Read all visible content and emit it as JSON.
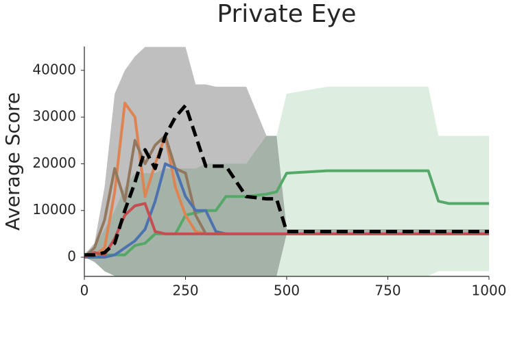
{
  "chart_data": {
    "type": "line",
    "title": "Private Eye",
    "ylabel": "Average Score",
    "x": [
      0,
      25,
      50,
      75,
      100,
      125,
      150,
      175,
      200,
      225,
      250,
      275,
      300,
      325,
      350,
      400,
      450,
      475,
      500,
      600,
      700,
      800,
      850,
      875,
      900,
      1000
    ],
    "xlim": [
      0,
      1000
    ],
    "xticks": [
      0,
      250,
      500,
      750,
      1000
    ],
    "ylim": [
      -4100,
      45100
    ],
    "yticks": [
      0,
      10000,
      20000,
      30000,
      40000
    ],
    "series": [
      {
        "color": "#55a868",
        "band_opacity": 0.2,
        "values": [
          500,
          500,
          500,
          500,
          500,
          2500,
          3000,
          5000,
          5000,
          5000,
          9000,
          9500,
          10000,
          10000,
          13000,
          13000,
          13500,
          14000,
          18000,
          18500,
          18500,
          18500,
          18500,
          12000,
          11500,
          11500
        ],
        "upper": [
          1000,
          2000,
          6000,
          10000,
          15000,
          18000,
          18000,
          18000,
          19000,
          19000,
          19000,
          19000,
          20000,
          20000,
          20000,
          20000,
          26000,
          26000,
          35000,
          36500,
          36500,
          36500,
          36500,
          26000,
          26000,
          26000
        ],
        "lower": [
          0,
          -1000,
          -3000,
          -4000,
          -4000,
          -4000,
          -4000,
          -4000,
          -4000,
          -4000,
          -4000,
          -4000,
          -4000,
          -4000,
          -4000,
          -4000,
          -4000,
          -4000,
          -4000,
          -4000,
          -4000,
          -4000,
          -4000,
          -3000,
          -3000,
          -3000
        ]
      },
      {
        "color": "#dd8452",
        "values": [
          0,
          500,
          2000,
          14000,
          33000,
          30000,
          13000,
          20000,
          26000,
          15000,
          9000,
          5500,
          5000,
          5000,
          5000,
          5000,
          5000,
          5000,
          5000,
          5000,
          5000,
          5000,
          5000,
          5000,
          5000,
          5000
        ]
      },
      {
        "color": "#937860",
        "values": [
          0,
          2000,
          8000,
          19000,
          12000,
          25000,
          20000,
          24000,
          26000,
          19000,
          18000,
          9000,
          5000,
          5000,
          5000,
          5000,
          5000,
          5000,
          5000,
          5000,
          5000,
          5000,
          5000,
          5000,
          5000,
          5000
        ]
      },
      {
        "color": "#4c72b0",
        "values": [
          0,
          0,
          0,
          500,
          2000,
          3500,
          6000,
          12000,
          20000,
          19000,
          13000,
          10000,
          10000,
          5500,
          5000,
          5000,
          5000,
          5000,
          5000,
          5000,
          5000,
          5000,
          5000,
          5000,
          5000,
          5000
        ]
      },
      {
        "color": "#c44e52",
        "values": [
          0,
          1000,
          500,
          4000,
          9000,
          11000,
          11500,
          5500,
          5000,
          5000,
          5000,
          5000,
          5000,
          5000,
          5000,
          5000,
          5000,
          5000,
          5000,
          5000,
          5000,
          5000,
          5000,
          5000,
          5000,
          5000
        ]
      },
      {
        "color": "#000000",
        "dash": true,
        "band_opacity": 0.25,
        "values": [
          500,
          500,
          1000,
          3000,
          10000,
          16000,
          23000,
          19000,
          26000,
          30000,
          32500,
          26000,
          19500,
          19500,
          19500,
          13000,
          12500,
          12500,
          5500,
          5500,
          5500,
          5500,
          5500,
          5500,
          5500,
          5500
        ],
        "upper": [
          500,
          3000,
          15000,
          35000,
          40000,
          43000,
          45000,
          45000,
          45000,
          45000,
          45000,
          37000,
          37000,
          36500,
          36500,
          36500,
          26000,
          26000,
          6000,
          6000,
          6000,
          6000,
          6000,
          6000,
          6000,
          6000
        ],
        "lower": [
          0,
          -1000,
          -3000,
          -4000,
          -4000,
          -4000,
          -4000,
          -4000,
          -4000,
          -4000,
          -4000,
          -4000,
          -4000,
          -4000,
          -4000,
          -4000,
          -4000,
          -4000,
          5000,
          5000,
          5000,
          5000,
          5000,
          5000,
          5000,
          5000
        ]
      }
    ]
  }
}
